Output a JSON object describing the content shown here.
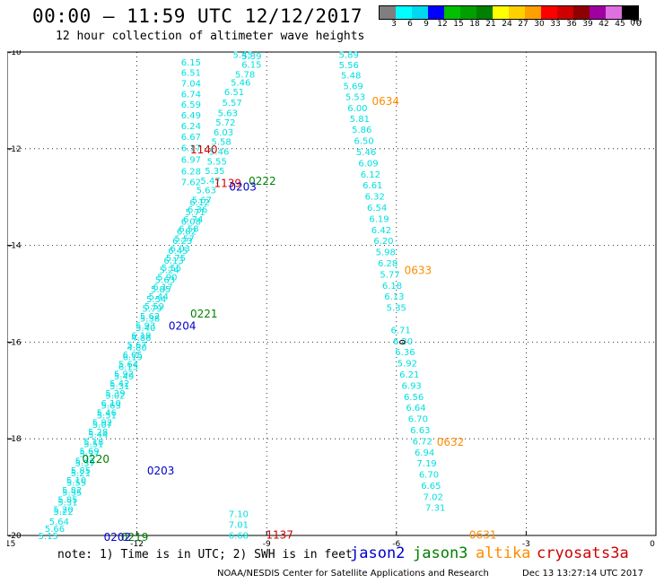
{
  "header": {
    "title": "00:00 – 11:59 UTC 12/12/2017",
    "subtitle": "12 hour collection of altimeter wave heights"
  },
  "color_scale": {
    "unit": "(ft)",
    "labels": [
      "3",
      "6",
      "9",
      "12",
      "15",
      "18",
      "21",
      "24",
      "27",
      "30",
      "33",
      "36",
      "39",
      "42",
      "45",
      "70"
    ],
    "colors": [
      "#7f7f7f",
      "#00ffff",
      "#00d8f0",
      "#0000ff",
      "#00c000",
      "#00a000",
      "#008000",
      "#ffff00",
      "#ffd000",
      "#ffa000",
      "#ff0000",
      "#d00000",
      "#900000",
      "#a000a0",
      "#e070e0",
      "#000000"
    ]
  },
  "axes": {
    "lon_ticks": [
      "-15",
      "-12",
      "-9",
      "-6",
      "-3",
      "0"
    ],
    "lat_ticks": [
      "-10",
      "-12",
      "-14",
      "-16",
      "-18",
      "-20"
    ]
  },
  "tracks": [
    {
      "name": "swath_a",
      "color": "#00e0e0",
      "points": [
        {
          "lon": -10.75,
          "lat": -10.2,
          "v": "6.15"
        },
        {
          "lon": -10.75,
          "lat": -10.42,
          "v": "6.51"
        },
        {
          "lon": -10.75,
          "lat": -10.64,
          "v": "7.04"
        },
        {
          "lon": -10.75,
          "lat": -10.86,
          "v": "6.74"
        },
        {
          "lon": -10.75,
          "lat": -11.08,
          "v": "6.59"
        },
        {
          "lon": -10.75,
          "lat": -11.3,
          "v": "6.49"
        },
        {
          "lon": -10.75,
          "lat": -11.52,
          "v": "6.24"
        },
        {
          "lon": -10.75,
          "lat": -11.74,
          "v": "6.67"
        },
        {
          "lon": -10.75,
          "lat": -11.98,
          "v": "6.17"
        },
        {
          "lon": -10.75,
          "lat": -12.22,
          "v": "6.97"
        },
        {
          "lon": -10.75,
          "lat": -12.46,
          "v": "6.28"
        },
        {
          "lon": -10.75,
          "lat": -12.68,
          "v": "7.62"
        },
        {
          "lon": -10.55,
          "lat": -13.1,
          "v": "6.12"
        },
        {
          "lon": -10.65,
          "lat": -13.3,
          "v": "5.71"
        },
        {
          "lon": -10.75,
          "lat": -13.5,
          "v": "6.08"
        },
        {
          "lon": -10.85,
          "lat": -13.7,
          "v": "6.82"
        },
        {
          "lon": -10.95,
          "lat": -13.9,
          "v": "6.23"
        },
        {
          "lon": -11.05,
          "lat": -14.1,
          "v": "6.45"
        },
        {
          "lon": -11.15,
          "lat": -14.3,
          "v": "6.13"
        },
        {
          "lon": -11.25,
          "lat": -14.5,
          "v": "5.24"
        },
        {
          "lon": -11.35,
          "lat": -14.7,
          "v": "5.63"
        },
        {
          "lon": -11.45,
          "lat": -14.9,
          "v": "5.85"
        },
        {
          "lon": -11.55,
          "lat": -15.1,
          "v": "5.54"
        },
        {
          "lon": -11.65,
          "lat": -15.3,
          "v": "5.79"
        },
        {
          "lon": -11.7,
          "lat": -15.5,
          "v": "5.38"
        },
        {
          "lon": -11.8,
          "lat": -15.7,
          "v": "5.40"
        },
        {
          "lon": -11.9,
          "lat": -15.9,
          "v": "4.86"
        },
        {
          "lon": -12.0,
          "lat": -16.1,
          "v": "4.80"
        },
        {
          "lon": -12.1,
          "lat": -16.3,
          "v": "6.19"
        },
        {
          "lon": -12.2,
          "lat": -16.5,
          "v": "6.15"
        },
        {
          "lon": -12.3,
          "lat": -16.7,
          "v": "5.49"
        },
        {
          "lon": -12.4,
          "lat": -16.9,
          "v": "5.31"
        },
        {
          "lon": -12.5,
          "lat": -17.1,
          "v": "5.02"
        },
        {
          "lon": -12.6,
          "lat": -17.3,
          "v": "5.63"
        },
        {
          "lon": -12.7,
          "lat": -17.5,
          "v": "5.51"
        },
        {
          "lon": -12.8,
          "lat": -17.7,
          "v": "5.07"
        },
        {
          "lon": -12.9,
          "lat": -17.9,
          "v": "5.44"
        },
        {
          "lon": -13.0,
          "lat": -18.1,
          "v": "5.51"
        },
        {
          "lon": -13.1,
          "lat": -18.3,
          "v": "5.37"
        },
        {
          "lon": -13.2,
          "lat": -18.5,
          "v": "5.37"
        },
        {
          "lon": -13.3,
          "lat": -18.7,
          "v": "5.21"
        },
        {
          "lon": -13.4,
          "lat": -18.9,
          "v": "5.55"
        },
        {
          "lon": -13.5,
          "lat": -19.1,
          "v": "5.35"
        },
        {
          "lon": -13.6,
          "lat": -19.3,
          "v": "5.31"
        },
        {
          "lon": -13.7,
          "lat": -19.5,
          "v": "5.22"
        },
        {
          "lon": -13.8,
          "lat": -19.7,
          "v": "5.64"
        },
        {
          "lon": -13.9,
          "lat": -19.85,
          "v": "5.66"
        },
        {
          "lon": -14.05,
          "lat": -20.0,
          "v": "5.15"
        }
      ]
    },
    {
      "name": "swath_b",
      "color": "#00e0e0",
      "points": [
        {
          "lon": -9.55,
          "lat": -10.05,
          "v": "5.45"
        },
        {
          "lon": -9.35,
          "lat": -10.07,
          "v": "5.39"
        },
        {
          "lon": -9.35,
          "lat": -10.25,
          "v": "6.15"
        },
        {
          "lon": -9.5,
          "lat": -10.45,
          "v": "5.78"
        },
        {
          "lon": -9.6,
          "lat": -10.62,
          "v": "5.46"
        },
        {
          "lon": -9.75,
          "lat": -10.82,
          "v": "6.51"
        },
        {
          "lon": -9.8,
          "lat": -11.04,
          "v": "5.57"
        },
        {
          "lon": -9.9,
          "lat": -11.25,
          "v": "5.63"
        },
        {
          "lon": -9.95,
          "lat": -11.45,
          "v": "5.72"
        },
        {
          "lon": -10.0,
          "lat": -11.65,
          "v": "6.03"
        },
        {
          "lon": -10.05,
          "lat": -11.85,
          "v": "5.58"
        },
        {
          "lon": -10.1,
          "lat": -12.05,
          "v": "5.46"
        },
        {
          "lon": -10.15,
          "lat": -12.25,
          "v": "5.55"
        },
        {
          "lon": -10.2,
          "lat": -12.45,
          "v": "5.35"
        },
        {
          "lon": -10.3,
          "lat": -12.65,
          "v": "5.47"
        },
        {
          "lon": -10.4,
          "lat": -12.85,
          "v": "5.63"
        },
        {
          "lon": -10.5,
          "lat": -13.05,
          "v": "5.67"
        },
        {
          "lon": -10.6,
          "lat": -13.25,
          "v": "6.36"
        },
        {
          "lon": -10.7,
          "lat": -13.45,
          "v": "6.74"
        },
        {
          "lon": -10.8,
          "lat": -13.65,
          "v": "6.58"
        },
        {
          "lon": -10.9,
          "lat": -13.85,
          "v": "5.57"
        },
        {
          "lon": -11.0,
          "lat": -14.05,
          "v": "6.03"
        },
        {
          "lon": -11.1,
          "lat": -14.25,
          "v": "5.75"
        },
        {
          "lon": -11.2,
          "lat": -14.45,
          "v": "5.55"
        },
        {
          "lon": -11.3,
          "lat": -14.65,
          "v": "5.90"
        },
        {
          "lon": -11.4,
          "lat": -14.85,
          "v": "6.17"
        },
        {
          "lon": -11.5,
          "lat": -15.05,
          "v": "5.44"
        },
        {
          "lon": -11.6,
          "lat": -15.25,
          "v": "5.59"
        },
        {
          "lon": -11.7,
          "lat": -15.45,
          "v": "5.62"
        },
        {
          "lon": -11.8,
          "lat": -15.65,
          "v": "5.93"
        },
        {
          "lon": -11.9,
          "lat": -15.85,
          "v": "6.19"
        },
        {
          "lon": -12.0,
          "lat": -16.05,
          "v": "5.67"
        },
        {
          "lon": -12.1,
          "lat": -16.25,
          "v": "6.05"
        },
        {
          "lon": -12.2,
          "lat": -16.45,
          "v": "5.64"
        },
        {
          "lon": -12.3,
          "lat": -16.65,
          "v": "5.92"
        },
        {
          "lon": -12.4,
          "lat": -16.85,
          "v": "5.42"
        },
        {
          "lon": -12.5,
          "lat": -17.05,
          "v": "5.39"
        },
        {
          "lon": -12.6,
          "lat": -17.25,
          "v": "6.10"
        },
        {
          "lon": -12.7,
          "lat": -17.45,
          "v": "5.46"
        },
        {
          "lon": -12.8,
          "lat": -17.65,
          "v": "5.92"
        },
        {
          "lon": -12.9,
          "lat": -17.85,
          "v": "5.28"
        },
        {
          "lon": -13.0,
          "lat": -18.05,
          "v": "5.18"
        },
        {
          "lon": -13.1,
          "lat": -18.25,
          "v": "5.69"
        },
        {
          "lon": -13.2,
          "lat": -18.45,
          "v": "5.46"
        },
        {
          "lon": -13.3,
          "lat": -18.65,
          "v": "5.85"
        },
        {
          "lon": -13.4,
          "lat": -18.85,
          "v": "5.10"
        },
        {
          "lon": -13.5,
          "lat": -19.05,
          "v": "5.82"
        },
        {
          "lon": -13.6,
          "lat": -19.25,
          "v": "5.85"
        },
        {
          "lon": -13.7,
          "lat": -19.45,
          "v": "5.20"
        }
      ]
    },
    {
      "name": "swath_c",
      "color": "#00e0e0",
      "points": [
        {
          "lon": -7.1,
          "lat": -10.05,
          "v": "5.89"
        },
        {
          "lon": -7.1,
          "lat": -10.26,
          "v": "5.56"
        },
        {
          "lon": -7.05,
          "lat": -10.47,
          "v": "5.48"
        },
        {
          "lon": -7.0,
          "lat": -10.7,
          "v": "5.69"
        },
        {
          "lon": -6.95,
          "lat": -10.92,
          "v": "5.53"
        },
        {
          "lon": -6.9,
          "lat": -11.15,
          "v": "6.00"
        },
        {
          "lon": -6.85,
          "lat": -11.37,
          "v": "5.81"
        },
        {
          "lon": -6.8,
          "lat": -11.6,
          "v": "5.86"
        },
        {
          "lon": -6.75,
          "lat": -11.83,
          "v": "6.50"
        },
        {
          "lon": -6.7,
          "lat": -12.06,
          "v": "5.46"
        },
        {
          "lon": -6.65,
          "lat": -12.29,
          "v": "6.09"
        },
        {
          "lon": -6.6,
          "lat": -12.52,
          "v": "6.12"
        },
        {
          "lon": -6.55,
          "lat": -12.75,
          "v": "6.61"
        },
        {
          "lon": -6.5,
          "lat": -12.98,
          "v": "6.32"
        },
        {
          "lon": -6.45,
          "lat": -13.21,
          "v": "6.54"
        },
        {
          "lon": -6.4,
          "lat": -13.44,
          "v": "6.19"
        },
        {
          "lon": -6.35,
          "lat": -13.67,
          "v": "6.42"
        },
        {
          "lon": -6.3,
          "lat": -13.9,
          "v": "6.20"
        },
        {
          "lon": -6.25,
          "lat": -14.13,
          "v": "5.98"
        },
        {
          "lon": -6.2,
          "lat": -14.36,
          "v": "6.28"
        },
        {
          "lon": -6.15,
          "lat": -14.59,
          "v": "5.77"
        },
        {
          "lon": -6.1,
          "lat": -14.82,
          "v": "6.18"
        },
        {
          "lon": -6.05,
          "lat": -15.05,
          "v": "6.13"
        },
        {
          "lon": -6.0,
          "lat": -15.28,
          "v": "5.35"
        },
        {
          "lon": -5.9,
          "lat": -15.74,
          "v": "6.71"
        },
        {
          "lon": -5.85,
          "lat": -15.97,
          "v": "6.20"
        },
        {
          "lon": -5.8,
          "lat": -16.2,
          "v": "6.36"
        },
        {
          "lon": -5.75,
          "lat": -16.43,
          "v": "5.92"
        },
        {
          "lon": -5.7,
          "lat": -16.66,
          "v": "6.21"
        },
        {
          "lon": -5.65,
          "lat": -16.89,
          "v": "6.93"
        },
        {
          "lon": -5.6,
          "lat": -17.12,
          "v": "6.56"
        },
        {
          "lon": -5.55,
          "lat": -17.35,
          "v": "6.64"
        },
        {
          "lon": -5.5,
          "lat": -17.58,
          "v": "6.70"
        },
        {
          "lon": -5.45,
          "lat": -17.81,
          "v": "6.63"
        },
        {
          "lon": -5.4,
          "lat": -18.04,
          "v": "6.72"
        },
        {
          "lon": -5.35,
          "lat": -18.27,
          "v": "6.94"
        },
        {
          "lon": -5.3,
          "lat": -18.5,
          "v": "7.19"
        },
        {
          "lon": -5.25,
          "lat": -18.73,
          "v": "6.70"
        },
        {
          "lon": -5.2,
          "lat": -18.96,
          "v": "6.65"
        },
        {
          "lon": -5.15,
          "lat": -19.19,
          "v": "7.02"
        },
        {
          "lon": -5.1,
          "lat": -19.42,
          "v": "7.31"
        }
      ]
    },
    {
      "name": "swath_d",
      "color": "#00e0e0",
      "points": [
        {
          "lon": -9.65,
          "lat": -19.55,
          "v": "7.10"
        },
        {
          "lon": -9.65,
          "lat": -19.77,
          "v": "7.01"
        },
        {
          "lon": -9.65,
          "lat": -19.99,
          "v": "6.68"
        }
      ]
    }
  ],
  "time_labels": [
    {
      "text": "0634",
      "lon": -6.25,
      "lat": -11.0,
      "color": "#ff8c00"
    },
    {
      "text": "0633",
      "lon": -5.5,
      "lat": -14.5,
      "color": "#ff8c00"
    },
    {
      "text": "0632",
      "lon": -4.75,
      "lat": -18.05,
      "color": "#ff8c00"
    },
    {
      "text": "0631",
      "lon": -4.0,
      "lat": -19.97,
      "color": "#ff8c00"
    },
    {
      "text": "1140",
      "lon": -10.45,
      "lat": -12.0,
      "color": "#d00000"
    },
    {
      "text": "1139",
      "lon": -9.9,
      "lat": -12.7,
      "color": "#d00000"
    },
    {
      "text": "1137",
      "lon": -8.7,
      "lat": -19.97,
      "color": "#d00000"
    },
    {
      "text": "0222",
      "lon": -9.1,
      "lat": -12.65,
      "color": "#008000"
    },
    {
      "text": "0221",
      "lon": -10.45,
      "lat": -15.4,
      "color": "#008000"
    },
    {
      "text": "0220",
      "lon": -12.95,
      "lat": -18.4,
      "color": "#008000"
    },
    {
      "text": "0219",
      "lon": -12.05,
      "lat": -20.02,
      "color": "#008000"
    },
    {
      "text": "0203",
      "lon": -9.55,
      "lat": -12.77,
      "color": "#0000cd"
    },
    {
      "text": "0204",
      "lon": -10.95,
      "lat": -15.65,
      "color": "#0000cd"
    },
    {
      "text": "0203",
      "lon": -11.45,
      "lat": -18.65,
      "color": "#0000cd"
    },
    {
      "text": "0202",
      "lon": -12.45,
      "lat": -20.02,
      "color": "#0000cd"
    }
  ],
  "land_outline_label": {
    "lon": -5.8,
    "lat": -16.0
  },
  "note": "note: 1) Time is in UTC; 2) SWH is in feet",
  "sat_legend": [
    {
      "name": "jason2",
      "color": "#0000cd"
    },
    {
      "name": "jason3",
      "color": "#008000"
    },
    {
      "name": "altika",
      "color": "#ff8c00"
    },
    {
      "name": "cryosat",
      "color": "#d00000"
    },
    {
      "name": "s3a",
      "color": "#d00000"
    }
  ],
  "footer": {
    "credit": "NOAA/NESDIS Center for Satellite Applications and Research",
    "timestamp": "Dec 13 13:27:14 UTC 2017"
  }
}
